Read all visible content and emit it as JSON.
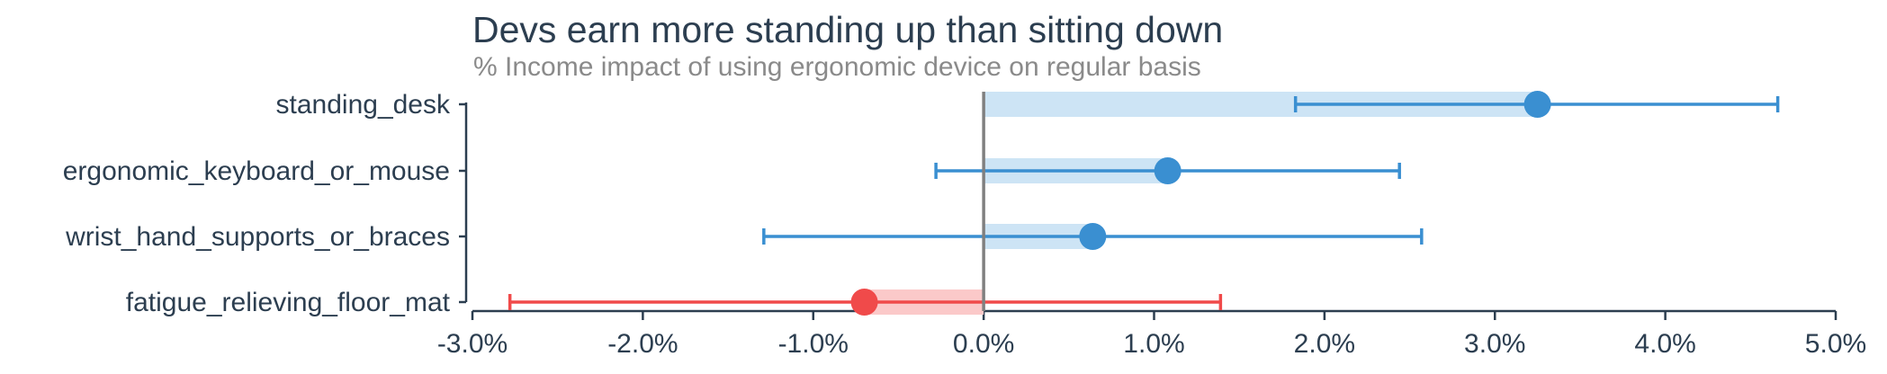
{
  "chart_data": {
    "type": "scatter",
    "title": "Devs earn more standing up than sitting down",
    "subtitle": "% Income impact of using ergonomic device on regular basis",
    "xlabel": "",
    "ylabel": "",
    "xlim": [
      -3.0,
      5.0
    ],
    "x_ticks": [
      -3,
      -2,
      -1,
      0,
      1,
      2,
      3,
      4,
      5
    ],
    "x_tick_labels": [
      "-3.0%",
      "-2.0%",
      "-1.0%",
      "0.0%",
      "1.0%",
      "2.0%",
      "3.0%",
      "4.0%",
      "5.0%"
    ],
    "grid": false,
    "categories": [
      "standing_desk",
      "ergonomic_keyboard_or_mouse",
      "wrist_hand_supports_or_braces",
      "fatigue_relieving_floor_mat"
    ],
    "estimates": [
      3.25,
      1.08,
      0.64,
      -0.7
    ],
    "ci_low": [
      1.83,
      -0.28,
      -1.29,
      -2.78
    ],
    "ci_high": [
      4.66,
      2.44,
      2.57,
      1.39
    ],
    "colors": {
      "positive": "#3a8fd1",
      "positive_bar": "#cde4f5",
      "negative": "#f04a4a",
      "negative_bar": "#fbc9c9",
      "zero_line": "#808080",
      "axis": "#2c3e50"
    }
  }
}
